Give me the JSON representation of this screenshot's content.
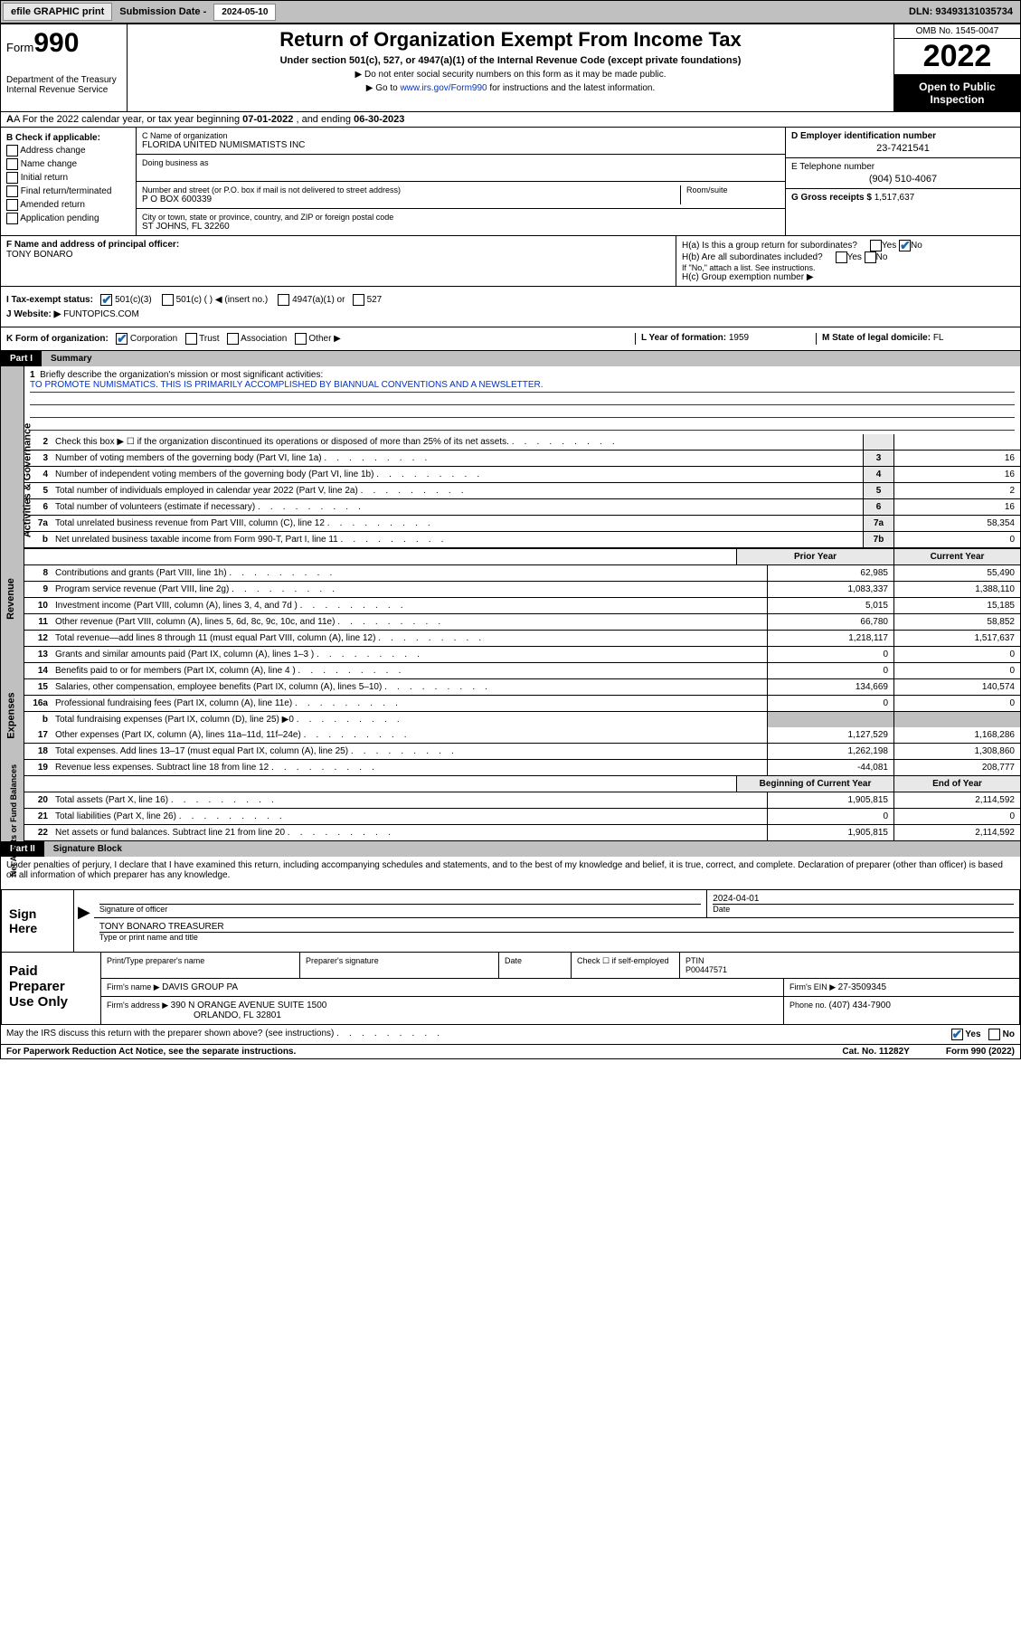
{
  "topbar": {
    "efile": "efile GRAPHIC print",
    "sub_label": "Submission Date - ",
    "sub_date": "2024-05-10",
    "dln": "DLN: 93493131035734"
  },
  "header": {
    "form_word": "Form",
    "form_num": "990",
    "dept": "Department of the Treasury\nInternal Revenue Service",
    "title": "Return of Organization Exempt From Income Tax",
    "sub": "Under section 501(c), 527, or 4947(a)(1) of the Internal Revenue Code (except private foundations)",
    "note1": "▶ Do not enter social security numbers on this form as it may be made public.",
    "note2_pre": "▶ Go to ",
    "note2_link": "www.irs.gov/Form990",
    "note2_post": " for instructions and the latest information.",
    "omb": "OMB No. 1545-0047",
    "year": "2022",
    "open": "Open to Public Inspection"
  },
  "rowA": {
    "text_pre": "A For the 2022 calendar year, or tax year beginning ",
    "begin": "07-01-2022",
    "mid": " , and ending ",
    "end": "06-30-2023"
  },
  "colB": {
    "hdr": "B Check if applicable:",
    "items": [
      "Address change",
      "Name change",
      "Initial return",
      "Final return/terminated",
      "Amended return",
      "Application pending"
    ]
  },
  "colC": {
    "name_label": "C Name of organization",
    "name": "FLORIDA UNITED NUMISMATISTS INC",
    "dba_label": "Doing business as",
    "street_label": "Number and street (or P.O. box if mail is not delivered to street address)",
    "room_label": "Room/suite",
    "street": "P O BOX 600339",
    "city_label": "City or town, state or province, country, and ZIP or foreign postal code",
    "city": "ST JOHNS, FL  32260"
  },
  "colD": {
    "ein_label": "D Employer identification number",
    "ein": "23-7421541",
    "phone_label": "E Telephone number",
    "phone": "(904) 510-4067",
    "gross_label": "G Gross receipts $ ",
    "gross": "1,517,637"
  },
  "rowF": {
    "label": "F  Name and address of principal officer:",
    "name": "TONY BONARO"
  },
  "rowH": {
    "ha": "H(a)  Is this a group return for subordinates?",
    "hb": "H(b)  Are all subordinates included?",
    "hb_note": "If \"No,\" attach a list. See instructions.",
    "hc": "H(c)  Group exemption number ▶"
  },
  "rowI": {
    "label": "I    Tax-exempt status:",
    "o1": "501(c)(3)",
    "o2": "501(c) (  ) ◀ (insert no.)",
    "o3": "4947(a)(1) or",
    "o4": "527"
  },
  "rowJ": {
    "label": "J    Website: ▶ ",
    "site": "FUNTOPICS.COM"
  },
  "rowK": {
    "label": "K Form of organization:",
    "o1": "Corporation",
    "o2": "Trust",
    "o3": "Association",
    "o4": "Other ▶",
    "l_label": "L Year of formation: ",
    "l_val": "1959",
    "m_label": "M State of legal domicile: ",
    "m_val": "FL"
  },
  "part1": {
    "label": "Part I",
    "title": "Summary"
  },
  "mission": {
    "n": "1",
    "label": "Briefly describe the organization's mission or most significant activities:",
    "text": "TO PROMOTE NUMISMATICS. THIS IS PRIMARILY ACCOMPLISHED BY BIANNUAL CONVENTIONS AND A NEWSLETTER."
  },
  "gov_lines": [
    {
      "n": "2",
      "t": "Check this box ▶ ☐  if the organization discontinued its operations or disposed of more than 25% of its net assets.",
      "box": "",
      "v": ""
    },
    {
      "n": "3",
      "t": "Number of voting members of the governing body (Part VI, line 1a)",
      "box": "3",
      "v": "16"
    },
    {
      "n": "4",
      "t": "Number of independent voting members of the governing body (Part VI, line 1b)",
      "box": "4",
      "v": "16"
    },
    {
      "n": "5",
      "t": "Total number of individuals employed in calendar year 2022 (Part V, line 2a)",
      "box": "5",
      "v": "2"
    },
    {
      "n": "6",
      "t": "Total number of volunteers (estimate if necessary)",
      "box": "6",
      "v": "16"
    },
    {
      "n": "7a",
      "t": "Total unrelated business revenue from Part VIII, column (C), line 12",
      "box": "7a",
      "v": "58,354"
    },
    {
      "n": "b",
      "t": "Net unrelated business taxable income from Form 990-T, Part I, line 11",
      "box": "7b",
      "v": "0"
    }
  ],
  "col_hdr": {
    "prior": "Prior Year",
    "current": "Current Year"
  },
  "rev_lines": [
    {
      "n": "8",
      "t": "Contributions and grants (Part VIII, line 1h)",
      "p": "62,985",
      "c": "55,490"
    },
    {
      "n": "9",
      "t": "Program service revenue (Part VIII, line 2g)",
      "p": "1,083,337",
      "c": "1,388,110"
    },
    {
      "n": "10",
      "t": "Investment income (Part VIII, column (A), lines 3, 4, and 7d )",
      "p": "5,015",
      "c": "15,185"
    },
    {
      "n": "11",
      "t": "Other revenue (Part VIII, column (A), lines 5, 6d, 8c, 9c, 10c, and 11e)",
      "p": "66,780",
      "c": "58,852"
    },
    {
      "n": "12",
      "t": "Total revenue—add lines 8 through 11 (must equal Part VIII, column (A), line 12)",
      "p": "1,218,117",
      "c": "1,517,637"
    }
  ],
  "exp_lines": [
    {
      "n": "13",
      "t": "Grants and similar amounts paid (Part IX, column (A), lines 1–3 )",
      "p": "0",
      "c": "0"
    },
    {
      "n": "14",
      "t": "Benefits paid to or for members (Part IX, column (A), line 4 )",
      "p": "0",
      "c": "0"
    },
    {
      "n": "15",
      "t": "Salaries, other compensation, employee benefits (Part IX, column (A), lines 5–10)",
      "p": "134,669",
      "c": "140,574"
    },
    {
      "n": "16a",
      "t": "Professional fundraising fees (Part IX, column (A), line 11e)",
      "p": "0",
      "c": "0"
    },
    {
      "n": "b",
      "t": "Total fundraising expenses (Part IX, column (D), line 25) ▶0",
      "p": "",
      "c": "",
      "nb": true
    },
    {
      "n": "17",
      "t": "Other expenses (Part IX, column (A), lines 11a–11d, 11f–24e)",
      "p": "1,127,529",
      "c": "1,168,286"
    },
    {
      "n": "18",
      "t": "Total expenses. Add lines 13–17 (must equal Part IX, column (A), line 25)",
      "p": "1,262,198",
      "c": "1,308,860"
    },
    {
      "n": "19",
      "t": "Revenue less expenses. Subtract line 18 from line 12",
      "p": "-44,081",
      "c": "208,777"
    }
  ],
  "na_hdr": {
    "b": "Beginning of Current Year",
    "e": "End of Year"
  },
  "na_lines": [
    {
      "n": "20",
      "t": "Total assets (Part X, line 16)",
      "p": "1,905,815",
      "c": "2,114,592"
    },
    {
      "n": "21",
      "t": "Total liabilities (Part X, line 26)",
      "p": "0",
      "c": "0"
    },
    {
      "n": "22",
      "t": "Net assets or fund balances. Subtract line 21 from line 20",
      "p": "1,905,815",
      "c": "2,114,592"
    }
  ],
  "side_labels": {
    "gov": "Activities & Governance",
    "rev": "Revenue",
    "exp": "Expenses",
    "na": "Net Assets or Fund Balances"
  },
  "part2": {
    "label": "Part II",
    "title": "Signature Block"
  },
  "sig": {
    "decl": "Under penalties of perjury, I declare that I have examined this return, including accompanying schedules and statements, and to the best of my knowledge and belief, it is true, correct, and complete. Declaration of preparer (other than officer) is based on all information of which preparer has any knowledge.",
    "sign_here": "Sign Here",
    "sig_label": "Signature of officer",
    "date_label": "Date",
    "date": "2024-04-01",
    "name": "TONY BONARO  TREASURER",
    "name_label": "Type or print name and title"
  },
  "prep": {
    "hdr": "Paid Preparer Use Only",
    "col1": "Print/Type preparer's name",
    "col2": "Preparer's signature",
    "col3": "Date",
    "col4_a": "Check ☐ if self-employed",
    "col4_b": "PTIN",
    "ptin": "P00447571",
    "firm_name_l": "Firm's name    ▶ ",
    "firm_name": "DAVIS GROUP PA",
    "firm_ein_l": "Firm's EIN ▶ ",
    "firm_ein": "27-3509345",
    "firm_addr_l": "Firm's address ▶ ",
    "firm_addr1": "390 N ORANGE AVENUE SUITE 1500",
    "firm_addr2": "ORLANDO, FL  32801",
    "phone_l": "Phone no. ",
    "phone": "(407) 434-7900"
  },
  "footer": {
    "q": "May the IRS discuss this return with the preparer shown above? (see instructions)",
    "yes": "Yes",
    "no": "No",
    "pra": "For Paperwork Reduction Act Notice, see the separate instructions.",
    "cat": "Cat. No. 11282Y",
    "form": "Form 990 (2022)"
  }
}
